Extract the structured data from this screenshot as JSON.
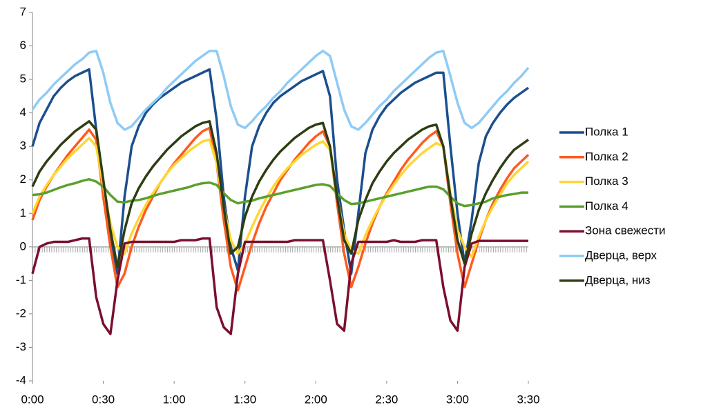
{
  "chart_data": {
    "type": "line",
    "x": [
      0,
      3,
      6,
      9,
      12,
      15,
      18,
      21,
      24,
      27,
      30,
      33,
      36,
      39,
      42,
      45,
      48,
      51,
      54,
      57,
      60,
      63,
      66,
      69,
      72,
      75,
      78,
      81,
      84,
      87,
      90,
      93,
      96,
      99,
      102,
      105,
      108,
      111,
      114,
      117,
      120,
      123,
      126,
      129,
      132,
      135,
      138,
      141,
      144,
      147,
      150,
      153,
      156,
      159,
      162,
      165,
      168,
      171,
      174,
      177,
      180,
      183,
      186,
      189,
      192,
      195,
      198,
      201,
      204,
      207,
      210
    ],
    "xlim": [
      0,
      210
    ],
    "xticks": [
      {
        "value": 0,
        "label": "0:00"
      },
      {
        "value": 30,
        "label": "0:30"
      },
      {
        "value": 60,
        "label": "1:00"
      },
      {
        "value": 90,
        "label": "1:30"
      },
      {
        "value": 120,
        "label": "2:00"
      },
      {
        "value": 150,
        "label": "2:30"
      },
      {
        "value": 180,
        "label": "3:00"
      },
      {
        "value": 210,
        "label": "3:30"
      }
    ],
    "ylim": [
      -4,
      7
    ],
    "yticks": [
      -4,
      -3,
      -2,
      -1,
      0,
      1,
      2,
      3,
      4,
      5,
      6,
      7
    ],
    "grid": false,
    "legend": "right",
    "series": [
      {
        "name": "Полка 1",
        "color": "#1b4f8e",
        "values": [
          3.0,
          3.7,
          4.1,
          4.5,
          4.75,
          4.95,
          5.1,
          5.2,
          5.3,
          3.5,
          1.5,
          0.2,
          -0.8,
          1.5,
          3.0,
          3.6,
          4.0,
          4.25,
          4.45,
          4.6,
          4.75,
          4.9,
          5.0,
          5.1,
          5.2,
          5.3,
          3.8,
          1.5,
          0.0,
          -0.7,
          1.5,
          3.0,
          3.6,
          4.0,
          4.3,
          4.5,
          4.65,
          4.8,
          4.95,
          5.05,
          5.15,
          5.25,
          4.5,
          2.0,
          0.5,
          -0.8,
          1.0,
          2.8,
          3.5,
          3.9,
          4.2,
          4.4,
          4.6,
          4.75,
          4.9,
          5.0,
          5.1,
          5.2,
          5.2,
          3.0,
          1.0,
          -0.5,
          0.8,
          2.5,
          3.3,
          3.7,
          4.0,
          4.25,
          4.45,
          4.6,
          4.75
        ]
      },
      {
        "name": "Полка 2",
        "color": "#ff5a1f",
        "values": [
          0.8,
          1.4,
          1.8,
          2.15,
          2.45,
          2.75,
          3.0,
          3.25,
          3.5,
          3.2,
          1.5,
          0.0,
          -1.2,
          -0.8,
          0.0,
          0.6,
          1.1,
          1.5,
          1.9,
          2.2,
          2.5,
          2.75,
          3.0,
          3.25,
          3.45,
          3.55,
          2.5,
          0.8,
          -0.6,
          -1.3,
          -0.6,
          0.1,
          0.7,
          1.2,
          1.6,
          2.0,
          2.3,
          2.6,
          2.85,
          3.1,
          3.3,
          3.45,
          3.0,
          1.3,
          -0.2,
          -1.2,
          -0.6,
          0.1,
          0.7,
          1.2,
          1.6,
          1.95,
          2.3,
          2.6,
          2.85,
          3.1,
          3.3,
          3.45,
          3.0,
          1.3,
          -0.2,
          -1.2,
          -0.5,
          0.2,
          0.8,
          1.3,
          1.7,
          2.05,
          2.35,
          2.55,
          2.75
        ]
      },
      {
        "name": "Полка 3",
        "color": "#ffd633",
        "values": [
          1.0,
          1.5,
          1.85,
          2.15,
          2.4,
          2.65,
          2.85,
          3.05,
          3.25,
          3.0,
          1.8,
          0.7,
          0.0,
          -0.2,
          0.4,
          0.85,
          1.25,
          1.6,
          1.9,
          2.2,
          2.45,
          2.65,
          2.85,
          3.0,
          3.15,
          3.2,
          2.5,
          1.2,
          0.2,
          -0.2,
          0.1,
          0.6,
          1.05,
          1.45,
          1.8,
          2.1,
          2.35,
          2.55,
          2.75,
          2.9,
          3.05,
          3.15,
          2.9,
          1.5,
          0.4,
          -0.1,
          -0.2,
          0.35,
          0.8,
          1.2,
          1.55,
          1.85,
          2.15,
          2.4,
          2.6,
          2.8,
          2.95,
          3.1,
          3.0,
          1.6,
          0.5,
          0.0,
          -0.3,
          0.3,
          0.8,
          1.2,
          1.55,
          1.9,
          2.15,
          2.35,
          2.55
        ]
      },
      {
        "name": "Полка 4",
        "color": "#5aa02c",
        "values": [
          1.55,
          1.57,
          1.62,
          1.7,
          1.78,
          1.85,
          1.9,
          1.97,
          2.02,
          1.95,
          1.8,
          1.55,
          1.35,
          1.33,
          1.38,
          1.4,
          1.45,
          1.52,
          1.58,
          1.63,
          1.68,
          1.73,
          1.78,
          1.85,
          1.9,
          1.92,
          1.85,
          1.6,
          1.4,
          1.3,
          1.35,
          1.38,
          1.45,
          1.5,
          1.55,
          1.6,
          1.65,
          1.7,
          1.75,
          1.8,
          1.85,
          1.87,
          1.82,
          1.6,
          1.4,
          1.28,
          1.3,
          1.35,
          1.4,
          1.45,
          1.5,
          1.55,
          1.6,
          1.65,
          1.7,
          1.75,
          1.8,
          1.8,
          1.72,
          1.5,
          1.3,
          1.22,
          1.25,
          1.3,
          1.35,
          1.45,
          1.5,
          1.55,
          1.58,
          1.62,
          1.62
        ]
      },
      {
        "name": "Зона свежести",
        "color": "#7b0f2e",
        "values": [
          -0.8,
          0.0,
          0.1,
          0.15,
          0.15,
          0.15,
          0.2,
          0.25,
          0.25,
          -1.5,
          -2.3,
          -2.6,
          -1.0,
          0.1,
          0.15,
          0.15,
          0.15,
          0.15,
          0.15,
          0.15,
          0.15,
          0.2,
          0.2,
          0.2,
          0.25,
          0.25,
          -1.8,
          -2.4,
          -2.6,
          -0.8,
          0.15,
          0.15,
          0.15,
          0.15,
          0.15,
          0.15,
          0.15,
          0.2,
          0.2,
          0.2,
          0.2,
          0.2,
          -1.0,
          -2.3,
          -2.5,
          -0.5,
          0.15,
          0.15,
          0.15,
          0.15,
          0.15,
          0.2,
          0.15,
          0.15,
          0.15,
          0.2,
          0.2,
          0.2,
          -1.2,
          -2.2,
          -2.5,
          -0.6,
          0.1,
          0.18,
          0.18,
          0.18,
          0.18,
          0.18,
          0.18,
          0.18,
          0.18
        ]
      },
      {
        "name": "Дверца, верх",
        "color": "#8ecbf5",
        "values": [
          4.1,
          4.4,
          4.6,
          4.85,
          5.05,
          5.25,
          5.45,
          5.6,
          5.8,
          5.85,
          5.2,
          4.3,
          3.7,
          3.5,
          3.6,
          3.85,
          4.1,
          4.3,
          4.5,
          4.75,
          4.95,
          5.15,
          5.35,
          5.55,
          5.7,
          5.85,
          5.85,
          5.1,
          4.2,
          3.65,
          3.55,
          3.75,
          4.0,
          4.2,
          4.45,
          4.65,
          4.9,
          5.1,
          5.3,
          5.5,
          5.7,
          5.85,
          5.7,
          4.9,
          4.1,
          3.6,
          3.5,
          3.7,
          3.95,
          4.2,
          4.4,
          4.65,
          4.85,
          5.05,
          5.25,
          5.45,
          5.65,
          5.8,
          5.85,
          5.1,
          4.3,
          3.7,
          3.55,
          3.7,
          3.95,
          4.2,
          4.45,
          4.65,
          4.9,
          5.1,
          5.35
        ]
      },
      {
        "name": "Дверца, низ",
        "color": "#2e3d12",
        "values": [
          1.8,
          2.25,
          2.55,
          2.8,
          3.05,
          3.25,
          3.45,
          3.6,
          3.75,
          3.5,
          2.0,
          0.5,
          -0.6,
          0.5,
          1.3,
          1.75,
          2.1,
          2.4,
          2.65,
          2.9,
          3.1,
          3.3,
          3.45,
          3.6,
          3.7,
          3.75,
          2.8,
          1.2,
          -0.2,
          0.0,
          0.9,
          1.5,
          1.95,
          2.3,
          2.6,
          2.85,
          3.05,
          3.25,
          3.4,
          3.55,
          3.65,
          3.7,
          3.0,
          1.5,
          0.2,
          -0.2,
          0.8,
          1.4,
          1.9,
          2.25,
          2.55,
          2.8,
          3.0,
          3.2,
          3.35,
          3.5,
          3.6,
          3.65,
          3.0,
          1.5,
          0.2,
          -0.5,
          0.4,
          1.1,
          1.6,
          2.0,
          2.35,
          2.65,
          2.9,
          3.05,
          3.2
        ]
      }
    ]
  }
}
